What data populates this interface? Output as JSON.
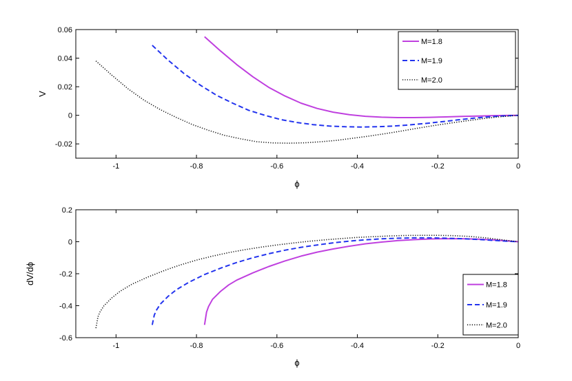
{
  "chart_data": [
    {
      "type": "line",
      "xlabel": "ϕ",
      "ylabel": "V",
      "xlim": [
        -1.1,
        0
      ],
      "ylim": [
        -0.03,
        0.06
      ],
      "xticks": [
        "-1",
        "-0.8",
        "-0.6",
        "-0.4",
        "-0.2",
        "0"
      ],
      "yticks": [
        "-0.02",
        "0",
        "0.02",
        "0.04",
        "0.06"
      ],
      "legend": "top-right",
      "series": [
        {
          "name": "M=1.8",
          "color": "#bf3fdf",
          "style": "solid",
          "x": [
            -0.78,
            -0.74,
            -0.7,
            -0.66,
            -0.62,
            -0.58,
            -0.54,
            -0.5,
            -0.46,
            -0.42,
            -0.38,
            -0.34,
            -0.3,
            -0.26,
            -0.22,
            -0.18,
            -0.14,
            -0.1,
            -0.06,
            -0.02,
            0
          ],
          "y": [
            0.055,
            0.045,
            0.0355,
            0.027,
            0.0195,
            0.0135,
            0.0085,
            0.0048,
            0.0022,
            0.0004,
            -0.0007,
            -0.0013,
            -0.0016,
            -0.0016,
            -0.0014,
            -0.0011,
            -0.0008,
            -0.0005,
            -0.0002,
            0.0,
            0.0
          ]
        },
        {
          "name": "M=1.9",
          "color": "#2233ee",
          "style": "dashed",
          "x": [
            -0.91,
            -0.87,
            -0.83,
            -0.79,
            -0.75,
            -0.71,
            -0.67,
            -0.63,
            -0.59,
            -0.55,
            -0.51,
            -0.47,
            -0.43,
            -0.39,
            -0.35,
            -0.31,
            -0.27,
            -0.23,
            -0.19,
            -0.15,
            -0.11,
            -0.07,
            -0.03,
            0
          ],
          "y": [
            0.049,
            0.0385,
            0.029,
            0.021,
            0.014,
            0.0085,
            0.0035,
            0.0,
            -0.003,
            -0.005,
            -0.0065,
            -0.0075,
            -0.008,
            -0.0082,
            -0.008,
            -0.0075,
            -0.0067,
            -0.0057,
            -0.0045,
            -0.0032,
            -0.002,
            -0.001,
            -0.0003,
            0.0
          ]
        },
        {
          "name": "M=2.0",
          "color": "#111111",
          "style": "dotted",
          "x": [
            -1.05,
            -1.01,
            -0.97,
            -0.93,
            -0.89,
            -0.85,
            -0.81,
            -0.77,
            -0.73,
            -0.69,
            -0.65,
            -0.61,
            -0.57,
            -0.53,
            -0.49,
            -0.45,
            -0.41,
            -0.37,
            -0.33,
            -0.29,
            -0.25,
            -0.21,
            -0.17,
            -0.13,
            -0.09,
            -0.05,
            -0.01,
            0
          ],
          "y": [
            0.038,
            0.028,
            0.0185,
            0.0105,
            0.004,
            -0.0015,
            -0.0065,
            -0.0105,
            -0.014,
            -0.0165,
            -0.0185,
            -0.0193,
            -0.0195,
            -0.0192,
            -0.0185,
            -0.0175,
            -0.016,
            -0.0145,
            -0.0128,
            -0.011,
            -0.009,
            -0.0072,
            -0.0055,
            -0.0039,
            -0.0024,
            -0.0011,
            -0.0002,
            0.0
          ]
        }
      ]
    },
    {
      "type": "line",
      "xlabel": "ϕ",
      "ylabel": "dV/dϕ",
      "xlim": [
        -1.1,
        0
      ],
      "ylim": [
        -0.6,
        0.2
      ],
      "xticks": [
        "-1",
        "-0.8",
        "-0.6",
        "-0.4",
        "-0.2",
        "0"
      ],
      "yticks": [
        "-0.6",
        "-0.4",
        "-0.2",
        "0",
        "0.2"
      ],
      "legend": "bottom-right",
      "series": [
        {
          "name": "M=1.8",
          "color": "#bf3fdf",
          "style": "solid",
          "x": [
            -0.78,
            -0.775,
            -0.77,
            -0.76,
            -0.74,
            -0.72,
            -0.7,
            -0.66,
            -0.62,
            -0.58,
            -0.54,
            -0.5,
            -0.46,
            -0.42,
            -0.38,
            -0.34,
            -0.3,
            -0.26,
            -0.22,
            -0.18,
            -0.14,
            -0.1,
            -0.06,
            -0.02,
            0
          ],
          "y": [
            -0.52,
            -0.44,
            -0.405,
            -0.36,
            -0.31,
            -0.27,
            -0.24,
            -0.195,
            -0.155,
            -0.12,
            -0.09,
            -0.065,
            -0.045,
            -0.028,
            -0.013,
            -0.002,
            0.007,
            0.013,
            0.017,
            0.019,
            0.019,
            0.016,
            0.011,
            0.004,
            0.0
          ]
        },
        {
          "name": "M=1.9",
          "color": "#2233ee",
          "style": "dashed",
          "x": [
            -0.91,
            -0.905,
            -0.9,
            -0.89,
            -0.87,
            -0.85,
            -0.82,
            -0.78,
            -0.74,
            -0.7,
            -0.66,
            -0.62,
            -0.58,
            -0.54,
            -0.5,
            -0.46,
            -0.42,
            -0.38,
            -0.34,
            -0.3,
            -0.26,
            -0.22,
            -0.18,
            -0.14,
            -0.1,
            -0.06,
            -0.02,
            0
          ],
          "y": [
            -0.52,
            -0.46,
            -0.43,
            -0.39,
            -0.34,
            -0.3,
            -0.255,
            -0.205,
            -0.165,
            -0.13,
            -0.1,
            -0.075,
            -0.053,
            -0.035,
            -0.02,
            -0.007,
            0.004,
            0.012,
            0.018,
            0.022,
            0.024,
            0.024,
            0.022,
            0.019,
            0.014,
            0.008,
            0.002,
            0.0
          ]
        },
        {
          "name": "M=2.0",
          "color": "#111111",
          "style": "dotted",
          "x": [
            -1.05,
            -1.045,
            -1.04,
            -1.03,
            -1.01,
            -0.99,
            -0.96,
            -0.92,
            -0.88,
            -0.84,
            -0.8,
            -0.76,
            -0.72,
            -0.68,
            -0.64,
            -0.6,
            -0.56,
            -0.52,
            -0.48,
            -0.44,
            -0.4,
            -0.36,
            -0.32,
            -0.28,
            -0.24,
            -0.2,
            -0.16,
            -0.12,
            -0.08,
            -0.04,
            0
          ],
          "y": [
            -0.54,
            -0.47,
            -0.44,
            -0.4,
            -0.35,
            -0.31,
            -0.265,
            -0.22,
            -0.18,
            -0.145,
            -0.115,
            -0.09,
            -0.068,
            -0.05,
            -0.034,
            -0.02,
            -0.008,
            0.003,
            0.012,
            0.02,
            0.027,
            0.032,
            0.036,
            0.039,
            0.04,
            0.04,
            0.038,
            0.033,
            0.024,
            0.012,
            0.0
          ]
        }
      ]
    }
  ]
}
